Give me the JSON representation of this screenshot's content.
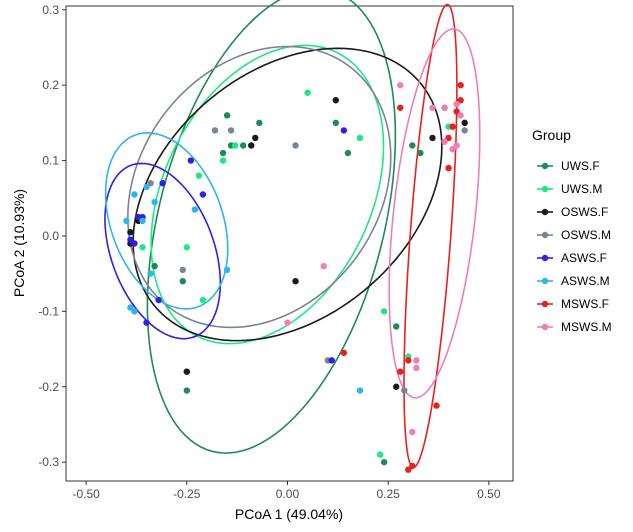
{
  "chart_data": {
    "type": "scatter",
    "title": "",
    "xlabel": "PCoA 1 (49.04%)",
    "ylabel": "PCoA 2 (10.93%)",
    "xlim": [
      -0.55,
      0.56
    ],
    "ylim": [
      -0.325,
      0.305
    ],
    "xticks": [
      -0.5,
      -0.25,
      0.0,
      0.25,
      0.5
    ],
    "xtick_labels": [
      "-0.50",
      "-0.25",
      "0.00",
      "0.25",
      "0.50"
    ],
    "yticks": [
      -0.3,
      -0.2,
      -0.1,
      0.0,
      0.1,
      0.2,
      0.3
    ],
    "ytick_labels": [
      "-0.3",
      "-0.2",
      "-0.1",
      "0.0",
      "0.1",
      "0.2",
      "0.3"
    ],
    "grid": false,
    "legend": {
      "title": "Group",
      "position": "right"
    },
    "ellipses": "95% confidence ellipse per group",
    "series": [
      {
        "name": "UWS.F",
        "color": "#1E8A55",
        "points": [
          [
            -0.07,
            0.15
          ],
          [
            -0.11,
            0.12
          ],
          [
            -0.14,
            0.12
          ],
          [
            -0.16,
            0.11
          ],
          [
            -0.15,
            0.16
          ],
          [
            -0.33,
            -0.04
          ],
          [
            -0.26,
            -0.06
          ],
          [
            -0.25,
            -0.18
          ],
          [
            -0.25,
            -0.205
          ],
          [
            0.12,
            0.15
          ],
          [
            0.15,
            0.11
          ],
          [
            0.27,
            -0.12
          ],
          [
            0.33,
            0.11
          ],
          [
            0.31,
            0.12
          ],
          [
            0.24,
            -0.3
          ]
        ]
      },
      {
        "name": "UWS.M",
        "color": "#1EE885",
        "points": [
          [
            -0.22,
            0.08
          ],
          [
            -0.25,
            -0.015
          ],
          [
            -0.36,
            -0.015
          ],
          [
            -0.21,
            -0.085
          ],
          [
            -0.16,
            0.1
          ],
          [
            -0.13,
            0.12
          ],
          [
            0.05,
            0.19
          ],
          [
            0.18,
            0.13
          ],
          [
            0.24,
            -0.1
          ],
          [
            0.3,
            -0.16
          ],
          [
            0.23,
            -0.29
          ],
          [
            0.4,
            0.145
          ]
        ]
      },
      {
        "name": "OSWS.F",
        "color": "#1A1A1A",
        "points": [
          [
            -0.37,
            0.02
          ],
          [
            -0.39,
            0.005
          ],
          [
            -0.39,
            -0.01
          ],
          [
            -0.09,
            0.12
          ],
          [
            -0.08,
            0.13
          ],
          [
            0.12,
            0.18
          ],
          [
            0.02,
            -0.06
          ],
          [
            -0.25,
            -0.18
          ],
          [
            0.36,
            0.13
          ],
          [
            0.44,
            0.15
          ],
          [
            0.27,
            -0.2
          ]
        ]
      },
      {
        "name": "OSWS.M",
        "color": "#7A8494",
        "points": [
          [
            -0.34,
            0.07
          ],
          [
            -0.26,
            -0.045
          ],
          [
            -0.18,
            0.14
          ],
          [
            -0.14,
            0.14
          ],
          [
            0.02,
            0.12
          ],
          [
            0.1,
            -0.165
          ],
          [
            0.29,
            -0.205
          ],
          [
            0.44,
            0.14
          ]
        ]
      },
      {
        "name": "ASWS.F",
        "color": "#2F1FE8",
        "points": [
          [
            -0.31,
            0.07
          ],
          [
            -0.24,
            0.1
          ],
          [
            -0.21,
            0.055
          ],
          [
            -0.37,
            0.025
          ],
          [
            -0.39,
            -0.005
          ],
          [
            -0.38,
            -0.01
          ],
          [
            -0.35,
            -0.115
          ],
          [
            -0.32,
            -0.085
          ],
          [
            0.14,
            0.14
          ],
          [
            0.11,
            -0.165
          ],
          [
            -0.36,
            0.025
          ]
        ]
      },
      {
        "name": "ASWS.M",
        "color": "#2EB6E8",
        "points": [
          [
            -0.38,
            0.055
          ],
          [
            -0.36,
            0.02
          ],
          [
            -0.35,
            0.065
          ],
          [
            -0.33,
            0.045
          ],
          [
            -0.39,
            -0.095
          ],
          [
            -0.38,
            -0.1
          ],
          [
            -0.34,
            -0.05
          ],
          [
            -0.23,
            0.035
          ],
          [
            -0.15,
            -0.045
          ],
          [
            0.18,
            -0.205
          ],
          [
            -0.4,
            0.02
          ]
        ]
      },
      {
        "name": "MSWS.F",
        "color": "#E8201E",
        "points": [
          [
            0.39,
            0.17
          ],
          [
            0.42,
            0.165
          ],
          [
            0.41,
            0.145
          ],
          [
            0.43,
            0.18
          ],
          [
            0.43,
            0.2
          ],
          [
            0.4,
            0.13
          ],
          [
            0.4,
            0.09
          ],
          [
            0.28,
            0.17
          ],
          [
            0.14,
            -0.155
          ],
          [
            0.28,
            -0.18
          ],
          [
            0.3,
            -0.165
          ],
          [
            0.37,
            -0.225
          ],
          [
            0.31,
            -0.305
          ],
          [
            0.3,
            -0.31
          ]
        ]
      },
      {
        "name": "MSWS.M",
        "color": "#EE7FB5",
        "points": [
          [
            0.28,
            0.2
          ],
          [
            0.36,
            0.17
          ],
          [
            0.39,
            0.17
          ],
          [
            0.42,
            0.175
          ],
          [
            0.43,
            0.16
          ],
          [
            0.39,
            0.125
          ],
          [
            0.41,
            0.115
          ],
          [
            0.42,
            0.12
          ],
          [
            0.09,
            -0.04
          ],
          [
            0.0,
            -0.115
          ],
          [
            0.32,
            -0.175
          ],
          [
            0.32,
            -0.165
          ],
          [
            0.31,
            -0.26
          ]
        ]
      }
    ],
    "ellipse_params": [
      {
        "series": "UWS.F",
        "center": [
          -0.04,
          0.02
        ],
        "radii": [
          0.36,
          0.245
        ],
        "rotation_deg": 45
      },
      {
        "series": "UWS.M",
        "center": [
          -0.05,
          0.055
        ],
        "radii": [
          0.3,
          0.18
        ],
        "rotation_deg": 20
      },
      {
        "series": "OSWS.F",
        "center": [
          0.0,
          0.055
        ],
        "radii": [
          0.39,
          0.18
        ],
        "rotation_deg": 12
      },
      {
        "series": "OSWS.M",
        "center": [
          -0.07,
          0.065
        ],
        "radii": [
          0.33,
          0.18
        ],
        "rotation_deg": 10
      },
      {
        "series": "ASWS.F",
        "center": [
          -0.31,
          -0.02
        ],
        "radii": [
          0.155,
          0.1
        ],
        "rotation_deg": -30
      },
      {
        "series": "ASWS.M",
        "center": [
          -0.3,
          0.02
        ],
        "radii": [
          0.16,
          0.105
        ],
        "rotation_deg": -25
      },
      {
        "series": "MSWS.F",
        "center": [
          0.355,
          0.0
        ],
        "radii": [
          0.05,
          0.31
        ],
        "rotation_deg": -8
      },
      {
        "series": "MSWS.M",
        "center": [
          0.365,
          0.03
        ],
        "radii": [
          0.1,
          0.25
        ],
        "rotation_deg": -13
      }
    ]
  }
}
